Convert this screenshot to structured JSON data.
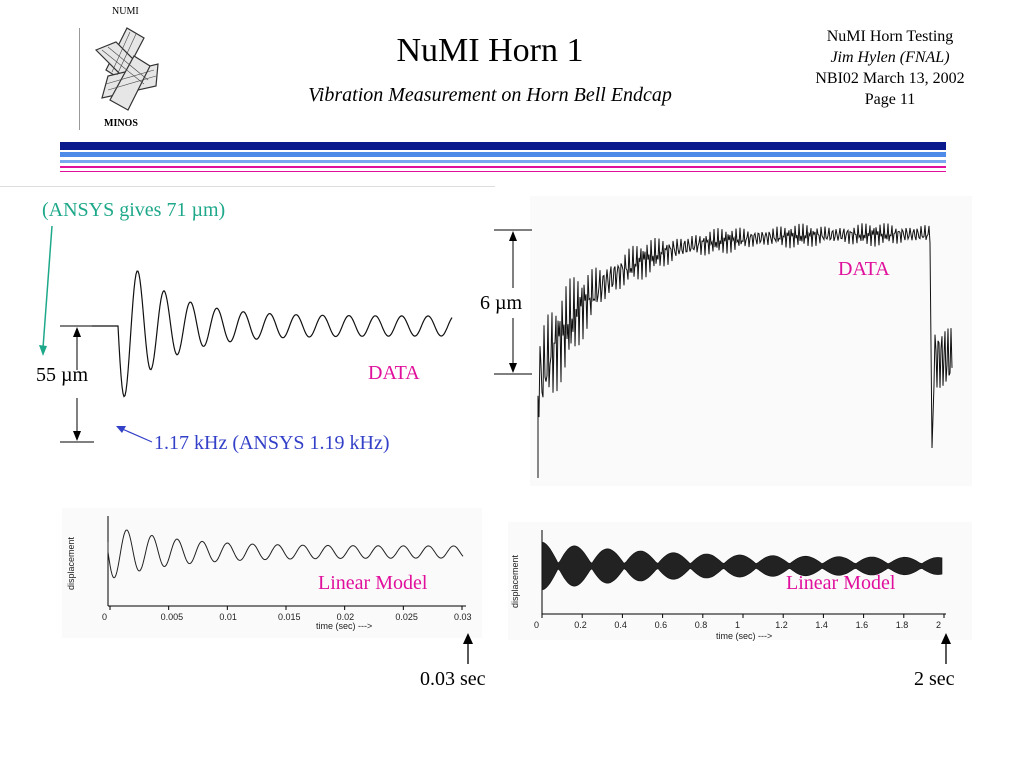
{
  "header": {
    "logo_top": "NUMI",
    "logo_bottom": "MINOS",
    "title": "NuMI Horn 1",
    "subtitle": "Vibration Measurement on Horn Bell Endcap",
    "right_lines": [
      "NuMI Horn Testing",
      "Jim Hylen (FNAL)",
      "NBI02 March 13, 2002",
      "Page 11"
    ]
  },
  "colors": {
    "navy": "#0a1a8c",
    "blue_light": "#4e8ae8",
    "magenta": "#e0109c",
    "teal": "#1ea88a",
    "label_blue": "#3340c8"
  },
  "left": {
    "ansys_note": "(ANSYS gives 71 µm)",
    "amplitude_label": "55 µm",
    "data_label": "DATA",
    "freq_note": "1.17 kHz (ANSYS 1.19 kHz)",
    "model_label": "Linear Model",
    "y_axis_label": "displacement",
    "x_axis_label": "time (sec) --->",
    "x_ticks": [
      "0",
      "0.005",
      "0.01",
      "0.015",
      "0.02",
      "0.025",
      "0.03"
    ],
    "end_marker": "0.03 sec"
  },
  "right": {
    "amplitude_label": "6 µm",
    "data_label": "DATA",
    "model_label": "Linear Model",
    "y_axis_label": "displacement",
    "x_axis_label": "time (sec) --->",
    "x_ticks": [
      "0",
      "0.2",
      "0.4",
      "0.6",
      "0.8",
      "1",
      "1.2",
      "1.4",
      "1.6",
      "1.8",
      "2"
    ],
    "end_marker": "2 sec"
  }
}
